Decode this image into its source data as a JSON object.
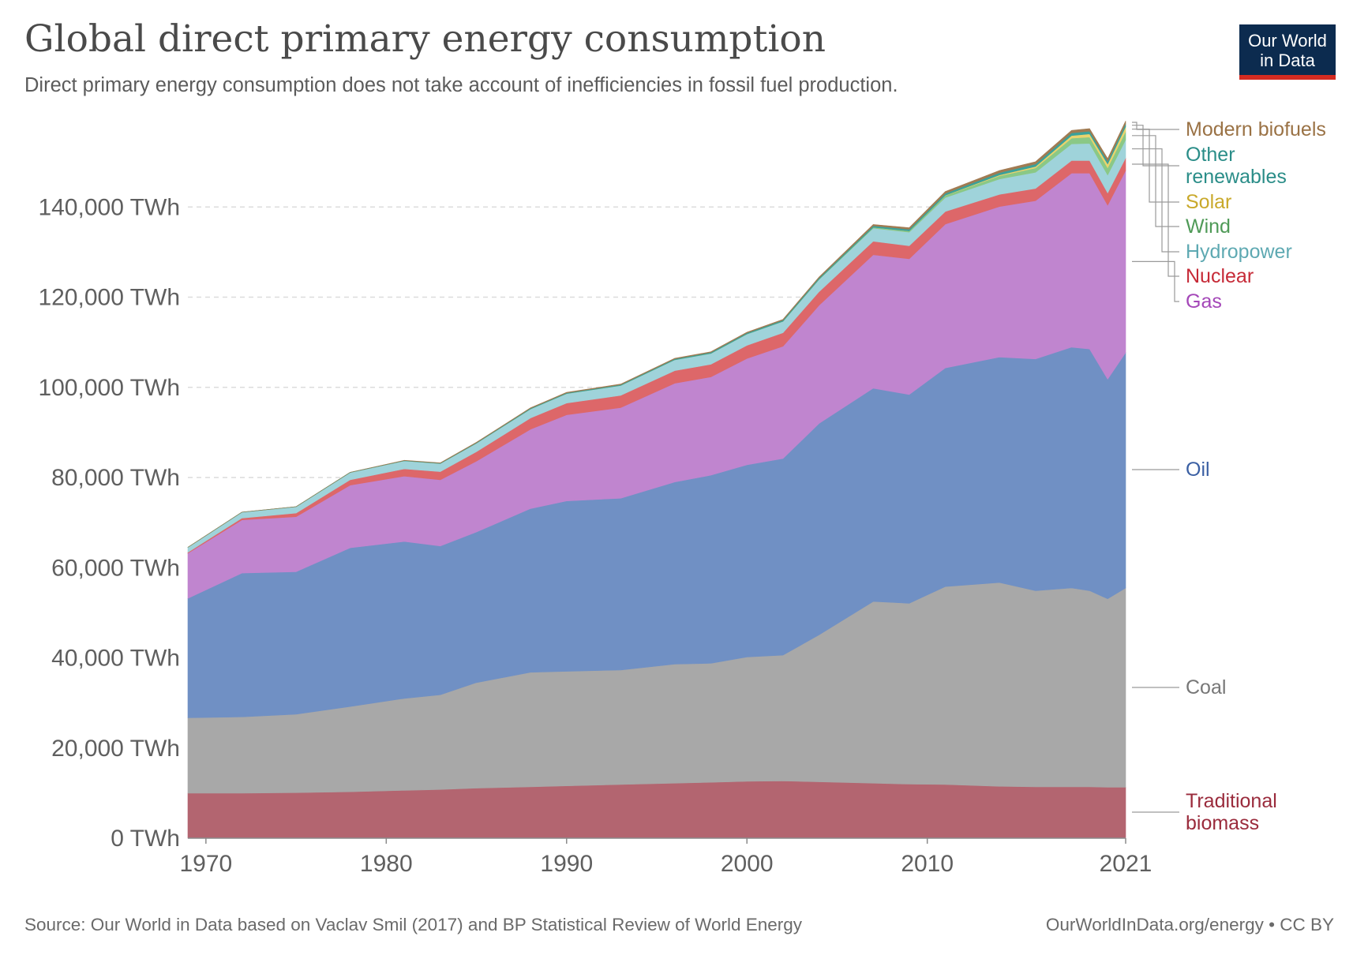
{
  "header": {
    "title": "Global direct primary energy consumption",
    "subtitle": "Direct primary energy consumption does not take account of inefficiencies in fossil fuel production."
  },
  "logo": {
    "line1": "Our World",
    "line2": "in Data"
  },
  "footer": {
    "source": "Source: Our World in Data based on Vaclav Smil (2017) and BP Statistical Review of World Energy",
    "license": "OurWorldInData.org/energy • CC BY"
  },
  "chart_data": {
    "type": "area",
    "stacked": true,
    "title": "Global direct primary energy consumption",
    "subtitle": "Direct primary energy consumption does not take account of inefficiencies in fossil fuel production.",
    "xlabel": "",
    "ylabel": "",
    "unit": "TWh",
    "xlim": [
      1969,
      2021
    ],
    "ylim": [
      0,
      160000
    ],
    "x_ticks": [
      1970,
      1980,
      1990,
      2000,
      2010,
      2021
    ],
    "y_ticks": [
      0,
      20000,
      40000,
      60000,
      80000,
      100000,
      120000,
      140000
    ],
    "y_tick_labels": [
      "0 TWh",
      "20,000 TWh",
      "40,000 TWh",
      "60,000 TWh",
      "80,000 TWh",
      "100,000 TWh",
      "120,000 TWh",
      "140,000 TWh"
    ],
    "grid": "horizontal dashed",
    "legend": "right (direct labels)",
    "x": [
      1969,
      1972,
      1975,
      1978,
      1981,
      1983,
      1985,
      1988,
      1990,
      1993,
      1996,
      1998,
      2000,
      2002,
      2004,
      2007,
      2009,
      2011,
      2014,
      2016,
      2018,
      2019,
      2020,
      2021
    ],
    "series": [
      {
        "name": "Traditional biomass",
        "color": "#b36570",
        "label_color": "#9a2b3c",
        "values": [
          10000,
          10000,
          10100,
          10300,
          10600,
          10800,
          11100,
          11400,
          11600,
          11900,
          12200,
          12400,
          12600,
          12700,
          12500,
          12200,
          12000,
          11900,
          11500,
          11400,
          11400,
          11400,
          11300,
          11300
        ]
      },
      {
        "name": "Coal",
        "color": "#a8a8a8",
        "label_color": "#777777",
        "values": [
          16700,
          16900,
          17400,
          18900,
          20400,
          21000,
          23400,
          25400,
          25400,
          25400,
          26400,
          26400,
          27600,
          27900,
          32600,
          40300,
          40100,
          43900,
          45200,
          43500,
          44100,
          43500,
          41800,
          44200
        ]
      },
      {
        "name": "Oil",
        "color": "#7090c4",
        "label_color": "#3a5fa3",
        "values": [
          26500,
          31900,
          31600,
          35200,
          34800,
          33000,
          33400,
          36300,
          37800,
          38100,
          40400,
          41700,
          42600,
          43600,
          46900,
          47300,
          46300,
          48500,
          50000,
          51400,
          53400,
          53600,
          48700,
          52200
        ]
      },
      {
        "name": "Gas",
        "color": "#c085cf",
        "label_color": "#a447b8",
        "values": [
          10000,
          11800,
          12200,
          13900,
          14500,
          14700,
          15700,
          17600,
          19100,
          20100,
          21900,
          21800,
          23600,
          24900,
          26200,
          29600,
          30100,
          31900,
          33400,
          35100,
          38600,
          39000,
          38600,
          40400
        ]
      },
      {
        "name": "Nuclear",
        "color": "#dd6769",
        "label_color": "#c62a37",
        "values": [
          200,
          400,
          800,
          1200,
          1600,
          1800,
          2100,
          2500,
          2600,
          2700,
          2800,
          2800,
          2900,
          3000,
          3000,
          3000,
          2900,
          2800,
          2700,
          2700,
          2800,
          2800,
          2700,
          2800
        ]
      },
      {
        "name": "Hydropower",
        "color": "#9fd3da",
        "label_color": "#5ea9b2",
        "values": [
          1100,
          1300,
          1400,
          1600,
          1800,
          1800,
          1900,
          2000,
          2100,
          2200,
          2400,
          2400,
          2500,
          2500,
          2700,
          2900,
          3000,
          3100,
          3400,
          3600,
          3700,
          3800,
          4000,
          4000
        ]
      },
      {
        "name": "Wind",
        "color": "#8ac886",
        "label_color": "#4f9a57",
        "values": [
          0,
          0,
          0,
          0,
          0,
          0,
          0,
          0,
          0,
          0,
          0,
          10,
          30,
          50,
          80,
          160,
          250,
          430,
          700,
          950,
          1250,
          1400,
          1590,
          1860
        ]
      },
      {
        "name": "Solar",
        "color": "#e9d36d",
        "label_color": "#c9a92b",
        "values": [
          0,
          0,
          0,
          0,
          0,
          0,
          0,
          0,
          0,
          0,
          0,
          0,
          0,
          0,
          0,
          10,
          20,
          60,
          200,
          330,
          580,
          700,
          850,
          1030
        ]
      },
      {
        "name": "Other renewables",
        "color": "#3aa19a",
        "label_color": "#2a8d88",
        "values": [
          20,
          30,
          40,
          60,
          70,
          80,
          100,
          150,
          170,
          190,
          210,
          230,
          240,
          260,
          300,
          350,
          390,
          430,
          500,
          540,
          600,
          620,
          640,
          680
        ]
      },
      {
        "name": "Modern biofuels",
        "color": "#a17b52",
        "label_color": "#9a7245",
        "values": [
          0,
          0,
          0,
          0,
          50,
          80,
          100,
          110,
          120,
          130,
          140,
          150,
          150,
          170,
          200,
          300,
          350,
          420,
          500,
          520,
          560,
          580,
          560,
          600
        ]
      }
    ]
  }
}
